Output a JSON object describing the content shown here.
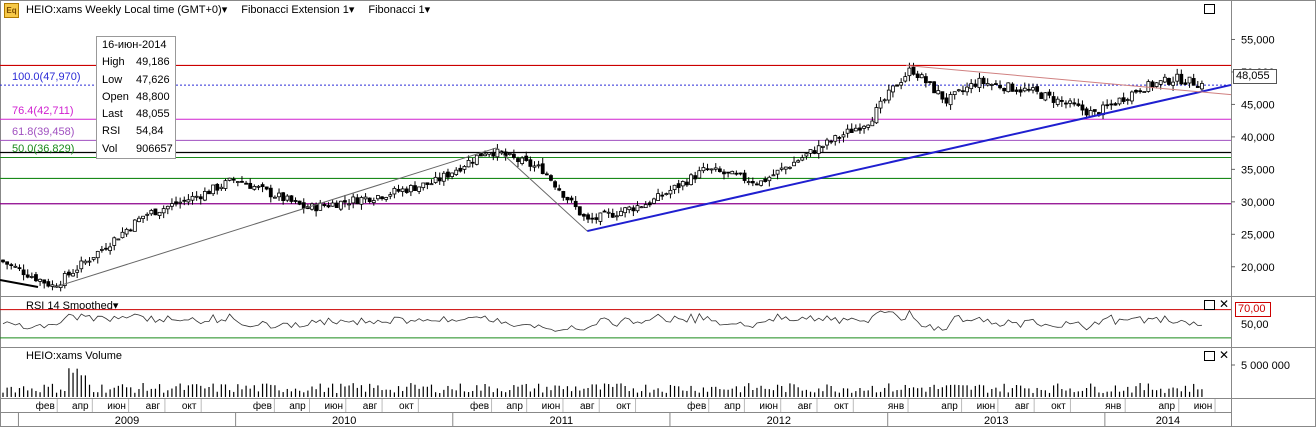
{
  "header": {
    "icon": "fx-icon",
    "icon_text": "Eq",
    "symbol_title": "HEIO:xams Weekly Local time (GMT+0)",
    "study1": "Fibonacci Extension 1",
    "study2": "Fibonacci 1"
  },
  "info_box": {
    "date": "16-июн-2014",
    "rows": [
      {
        "label": "High",
        "value": "49,186"
      },
      {
        "label": "Low",
        "value": "47,626"
      },
      {
        "label": "Open",
        "value": "48,800"
      },
      {
        "label": "Last",
        "value": "48,055"
      },
      {
        "label": "RSI",
        "value": "54,84"
      },
      {
        "label": "Vol",
        "value": "906657"
      }
    ]
  },
  "fib_levels": [
    {
      "label": "100.0(47,970)",
      "value": 47.97,
      "color": "#2b2bd6",
      "style": "dashed"
    },
    {
      "label": "76.4(42,711)",
      "value": 42.711,
      "color": "#d020d0",
      "style": "solid"
    },
    {
      "label": "61.8(39,458)",
      "value": 39.458,
      "color": "#a050c0",
      "style": "solid"
    },
    {
      "label": "50.0(36,829)",
      "value": 36.829,
      "color": "#1a8a1a",
      "style": "solid"
    }
  ],
  "horizontal_lines": [
    {
      "value": 51.0,
      "color": "#cc0000"
    },
    {
      "value": 37.6,
      "color": "#000000"
    },
    {
      "value": 33.6,
      "color": "#1a8a1a"
    },
    {
      "value": 29.7,
      "color": "#8b008b"
    }
  ],
  "last_price_tag": "48,055",
  "rsi_pane": {
    "title": "RSI 14 Smoothed",
    "level_tag": "70,00",
    "level": 70,
    "axis_labels": [
      "50,00"
    ]
  },
  "volume_pane": {
    "title": "HEIO:xams Volume",
    "axis_labels": [
      "5 000 000"
    ]
  },
  "x_axis": {
    "months": [
      "фев",
      "апр",
      "июн",
      "авг",
      "окт",
      "фев",
      "апр",
      "июн",
      "авг",
      "окт",
      "фев",
      "апр",
      "июн",
      "авг",
      "окт",
      "фев",
      "апр",
      "июн",
      "авг",
      "окт",
      "янв",
      "апр",
      "июн",
      "авг",
      "окт",
      "янв",
      "апр",
      "июн"
    ],
    "years": [
      "2009",
      "2010",
      "2011",
      "2012",
      "2013",
      "2014"
    ]
  },
  "chart_data": {
    "type": "candlestick",
    "title": "HEIO:xams Weekly",
    "y_ticks": [
      "55,000",
      "50,000",
      "45,000",
      "40,000",
      "35,000",
      "30,000",
      "25,000",
      "20,000"
    ],
    "ylim": [
      15.5,
      58
    ],
    "x_range": [
      "2008-12",
      "2014-08"
    ],
    "approx_weekly_close_path": [
      {
        "date": "2008-12-01",
        "value": 21.0
      },
      {
        "date": "2009-03-01",
        "value": 17.0
      },
      {
        "date": "2009-06-01",
        "value": 23.5
      },
      {
        "date": "2009-08-01",
        "value": 28.0
      },
      {
        "date": "2009-11-01",
        "value": 31.0
      },
      {
        "date": "2010-01-01",
        "value": 33.5
      },
      {
        "date": "2010-05-01",
        "value": 29.0
      },
      {
        "date": "2010-09-01",
        "value": 31.0
      },
      {
        "date": "2010-12-01",
        "value": 33.0
      },
      {
        "date": "2011-03-01",
        "value": 38.0
      },
      {
        "date": "2011-06-01",
        "value": 35.0
      },
      {
        "date": "2011-08-15",
        "value": 27.0
      },
      {
        "date": "2011-12-01",
        "value": 30.0
      },
      {
        "date": "2012-03-01",
        "value": 35.0
      },
      {
        "date": "2012-06-01",
        "value": 33.0
      },
      {
        "date": "2012-09-01",
        "value": 38.0
      },
      {
        "date": "2012-12-01",
        "value": 42.5
      },
      {
        "date": "2013-01-15",
        "value": 48.0
      },
      {
        "date": "2013-02-10",
        "value": 50.5
      },
      {
        "date": "2013-04-10",
        "value": 45.5
      },
      {
        "date": "2013-06-01",
        "value": 48.5
      },
      {
        "date": "2013-09-01",
        "value": 47.0
      },
      {
        "date": "2013-12-15",
        "value": 43.5
      },
      {
        "date": "2014-03-01",
        "value": 47.5
      },
      {
        "date": "2014-05-01",
        "value": 49.0
      },
      {
        "date": "2014-06-16",
        "value": 48.055
      }
    ],
    "trendlines": [
      {
        "from": {
          "date": "2011-08-15",
          "value": 25.5
        },
        "to": {
          "date": "2014-08-01",
          "value": 48.0
        },
        "color": "#1f1fd0"
      },
      {
        "from": {
          "date": "2013-02-01",
          "value": 51.0
        },
        "to": {
          "date": "2014-08-01",
          "value": 46.5
        },
        "color": "#d08080"
      },
      {
        "from": {
          "date": "2009-03-01",
          "value": 16.8
        },
        "to": {
          "date": "2011-03-15",
          "value": 38.3
        },
        "color": "#666666"
      },
      {
        "from": {
          "date": "2011-03-15",
          "value": 38.3
        },
        "to": {
          "date": "2011-08-15",
          "value": 25.5
        },
        "color": "#666666"
      }
    ]
  }
}
